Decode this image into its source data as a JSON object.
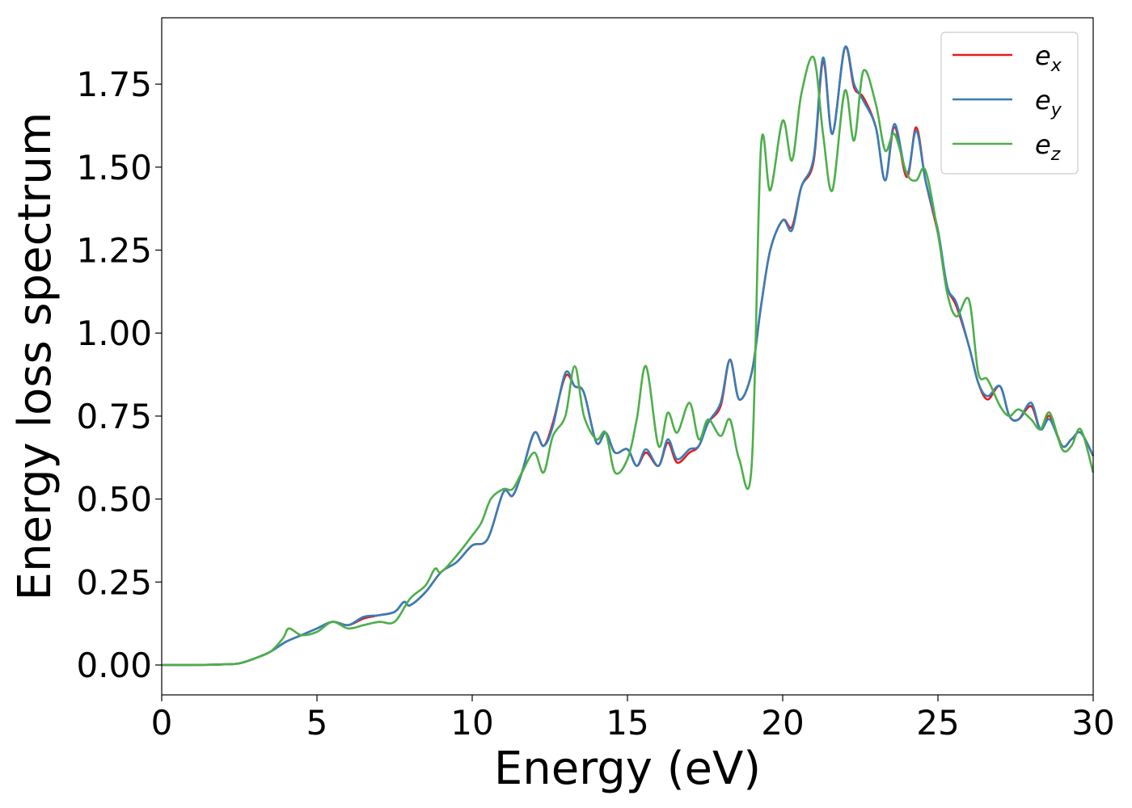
{
  "chart_data": {
    "type": "line",
    "xlabel": "Energy (eV)",
    "ylabel": "Energy loss spectrum",
    "xlim": [
      0,
      30
    ],
    "ylim": [
      -0.09,
      1.95
    ],
    "xticks": [
      0,
      5,
      10,
      15,
      20,
      25,
      30
    ],
    "xtick_labels": [
      "0",
      "5",
      "10",
      "15",
      "20",
      "25",
      "30"
    ],
    "yticks": [
      0.0,
      0.25,
      0.5,
      0.75,
      1.0,
      1.25,
      1.5,
      1.75
    ],
    "ytick_labels": [
      "0.00",
      "0.25",
      "0.50",
      "0.75",
      "1.00",
      "1.25",
      "1.50",
      "1.75"
    ],
    "grid": false,
    "legend_position": "top-right",
    "series": [
      {
        "name": "e_x",
        "label_base": "e",
        "label_sub": "x",
        "color": "#e41a1c",
        "x": [
          0,
          1,
          2,
          2.5,
          3,
          3.5,
          4,
          4.5,
          5,
          5.5,
          6,
          6.5,
          7,
          7.5,
          7.8,
          8,
          8.5,
          9,
          9.5,
          10,
          10.5,
          11,
          11.3,
          11.6,
          12,
          12.3,
          12.6,
          13,
          13.3,
          13.6,
          14,
          14.3,
          14.6,
          15,
          15.3,
          15.6,
          16,
          16.3,
          16.6,
          17,
          17.3,
          17.6,
          18,
          18.3,
          18.6,
          19,
          19.3,
          19.6,
          20,
          20.3,
          20.6,
          21,
          21.3,
          21.6,
          22,
          22.3,
          22.6,
          23,
          23.3,
          23.6,
          24,
          24.3,
          24.6,
          25,
          25.3,
          25.6,
          26,
          26.3,
          26.6,
          27,
          27.3,
          27.6,
          28,
          28.3,
          28.6,
          29,
          29.3,
          29.6,
          30
        ],
        "y": [
          0,
          0,
          0.002,
          0.005,
          0.02,
          0.04,
          0.07,
          0.09,
          0.11,
          0.13,
          0.12,
          0.14,
          0.15,
          0.16,
          0.19,
          0.18,
          0.22,
          0.28,
          0.31,
          0.36,
          0.38,
          0.52,
          0.51,
          0.58,
          0.7,
          0.66,
          0.73,
          0.87,
          0.84,
          0.82,
          0.67,
          0.7,
          0.64,
          0.65,
          0.6,
          0.64,
          0.6,
          0.67,
          0.61,
          0.64,
          0.66,
          0.73,
          0.78,
          0.92,
          0.8,
          0.88,
          1.08,
          1.25,
          1.34,
          1.32,
          1.44,
          1.52,
          1.82,
          1.6,
          1.86,
          1.74,
          1.71,
          1.62,
          1.46,
          1.62,
          1.47,
          1.62,
          1.46,
          1.3,
          1.14,
          1.08,
          0.96,
          0.85,
          0.8,
          0.84,
          0.75,
          0.74,
          0.78,
          0.71,
          0.75,
          0.66,
          0.68,
          0.7,
          0.63
        ]
      },
      {
        "name": "e_y",
        "label_base": "e",
        "label_sub": "y",
        "color": "#377eb8",
        "x": [
          0,
          1,
          2,
          2.5,
          3,
          3.5,
          4,
          4.5,
          5,
          5.5,
          6,
          6.5,
          7,
          7.5,
          7.8,
          8,
          8.5,
          9,
          9.5,
          10,
          10.5,
          11,
          11.3,
          11.6,
          12,
          12.3,
          12.6,
          13,
          13.3,
          13.6,
          14,
          14.3,
          14.6,
          15,
          15.3,
          15.6,
          16,
          16.3,
          16.6,
          17,
          17.3,
          17.6,
          18,
          18.3,
          18.6,
          19,
          19.3,
          19.6,
          20,
          20.3,
          20.6,
          21,
          21.3,
          21.6,
          22,
          22.3,
          22.6,
          23,
          23.3,
          23.6,
          24,
          24.3,
          24.6,
          25,
          25.3,
          25.6,
          26,
          26.3,
          26.6,
          27,
          27.3,
          27.6,
          28,
          28.3,
          28.6,
          29,
          29.3,
          29.6,
          30
        ],
        "y": [
          0,
          0,
          0.002,
          0.005,
          0.02,
          0.04,
          0.07,
          0.09,
          0.11,
          0.13,
          0.12,
          0.145,
          0.15,
          0.16,
          0.19,
          0.18,
          0.22,
          0.28,
          0.31,
          0.36,
          0.38,
          0.52,
          0.51,
          0.58,
          0.7,
          0.66,
          0.72,
          0.88,
          0.84,
          0.82,
          0.67,
          0.7,
          0.64,
          0.65,
          0.6,
          0.65,
          0.6,
          0.68,
          0.62,
          0.65,
          0.66,
          0.73,
          0.79,
          0.92,
          0.8,
          0.88,
          1.08,
          1.25,
          1.34,
          1.31,
          1.44,
          1.53,
          1.83,
          1.6,
          1.86,
          1.75,
          1.7,
          1.62,
          1.46,
          1.63,
          1.48,
          1.61,
          1.46,
          1.31,
          1.14,
          1.09,
          0.96,
          0.85,
          0.81,
          0.84,
          0.75,
          0.74,
          0.79,
          0.71,
          0.74,
          0.66,
          0.68,
          0.7,
          0.63
        ]
      },
      {
        "name": "e_z",
        "label_base": "e",
        "label_sub": "z",
        "color": "#4daf4a",
        "x": [
          0,
          1,
          2,
          2.5,
          3,
          3.5,
          3.9,
          4.1,
          4.5,
          5,
          5.5,
          6,
          6.5,
          7,
          7.5,
          8,
          8.5,
          8.8,
          9,
          9.5,
          10,
          10.3,
          10.6,
          11,
          11.3,
          11.6,
          12,
          12.3,
          12.6,
          13,
          13.3,
          13.6,
          14,
          14.3,
          14.6,
          15,
          15.3,
          15.6,
          16,
          16.3,
          16.6,
          17,
          17.3,
          17.6,
          18,
          18.3,
          18.6,
          19,
          19.3,
          19.6,
          20,
          20.3,
          20.6,
          21,
          21.3,
          21.6,
          22,
          22.3,
          22.6,
          23,
          23.3,
          23.6,
          24,
          24.3,
          24.6,
          25,
          25.3,
          25.6,
          26,
          26.3,
          26.6,
          27,
          27.3,
          27.6,
          28,
          28.3,
          28.6,
          29,
          29.3,
          29.6,
          30
        ],
        "y": [
          0,
          0,
          0.002,
          0.005,
          0.02,
          0.04,
          0.08,
          0.11,
          0.09,
          0.1,
          0.13,
          0.11,
          0.12,
          0.13,
          0.13,
          0.2,
          0.24,
          0.29,
          0.28,
          0.33,
          0.39,
          0.43,
          0.5,
          0.53,
          0.53,
          0.58,
          0.64,
          0.58,
          0.69,
          0.75,
          0.9,
          0.75,
          0.68,
          0.7,
          0.58,
          0.62,
          0.74,
          0.9,
          0.66,
          0.76,
          0.7,
          0.79,
          0.68,
          0.74,
          0.69,
          0.74,
          0.62,
          0.6,
          1.56,
          1.43,
          1.64,
          1.52,
          1.72,
          1.83,
          1.6,
          1.43,
          1.73,
          1.58,
          1.79,
          1.69,
          1.55,
          1.6,
          1.48,
          1.46,
          1.49,
          1.3,
          1.12,
          1.05,
          1.1,
          0.88,
          0.86,
          0.78,
          0.75,
          0.77,
          0.74,
          0.71,
          0.76,
          0.65,
          0.66,
          0.71,
          0.58
        ]
      }
    ]
  }
}
